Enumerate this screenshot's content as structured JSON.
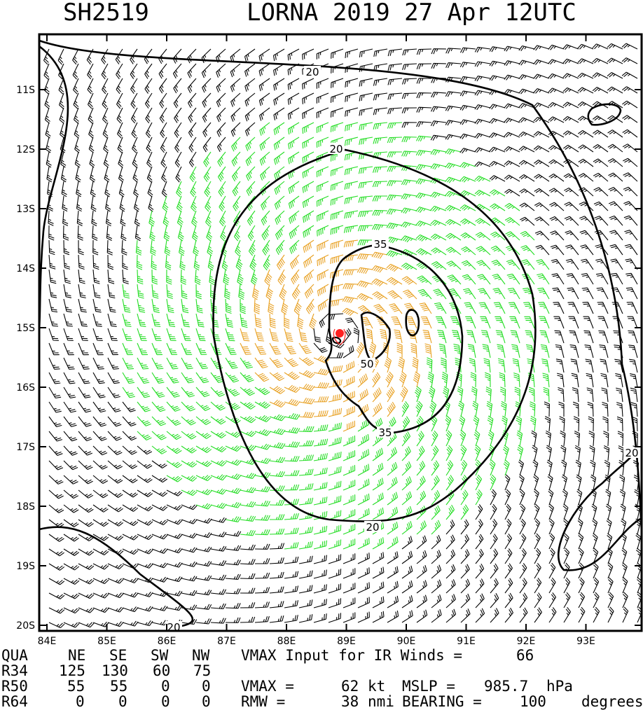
{
  "header": {
    "storm_id": "SH2519",
    "title": "LORNA 2019 27 Apr 12UTC"
  },
  "map": {
    "lat_labels": [
      "11S",
      "12S",
      "13S",
      "14S",
      "15S",
      "16S",
      "17S",
      "18S",
      "19S",
      "20S"
    ],
    "lon_labels": [
      "84E",
      "85E",
      "86E",
      "87E",
      "88E",
      "89E",
      "90E",
      "91E",
      "92E",
      "93E"
    ],
    "contour_labels": [
      "20",
      "20",
      "35",
      "50",
      "35",
      "20",
      "20",
      "20"
    ],
    "colors": {
      "frame": "#000000",
      "barb_weak": "#000000",
      "barb_34kt": "#22dd22",
      "barb_50kt": "#e8a020",
      "center_marker": "#ff2020"
    },
    "storm_center": {
      "lon": 88.85,
      "lat": -15.1
    }
  },
  "stats": {
    "headers": [
      "QUA",
      "NE",
      "SE",
      "SW",
      "NW"
    ],
    "rows": [
      {
        "label": "R34",
        "ne": "125",
        "se": "130",
        "sw": "60",
        "nw": "75"
      },
      {
        "label": "R50",
        "ne": "55",
        "se": "55",
        "sw": "0",
        "nw": "0"
      },
      {
        "label": "R64",
        "ne": "0",
        "se": "0",
        "sw": "0",
        "nw": "0"
      }
    ],
    "vmax_input_label": "VMAX Input for IR Winds =",
    "vmax_input_value": "66",
    "vmax_label": "VMAX =",
    "vmax_value": "62",
    "vmax_unit": "kt",
    "mslp_label": "MSLP =",
    "mslp_value": "985.7",
    "mslp_unit": "hPa",
    "rmw_label": "RMW =",
    "rmw_value": "38",
    "rmw_unit": "nmi",
    "bearing_label": "BEARING =",
    "bearing_value": "100",
    "bearing_unit": "degrees"
  }
}
